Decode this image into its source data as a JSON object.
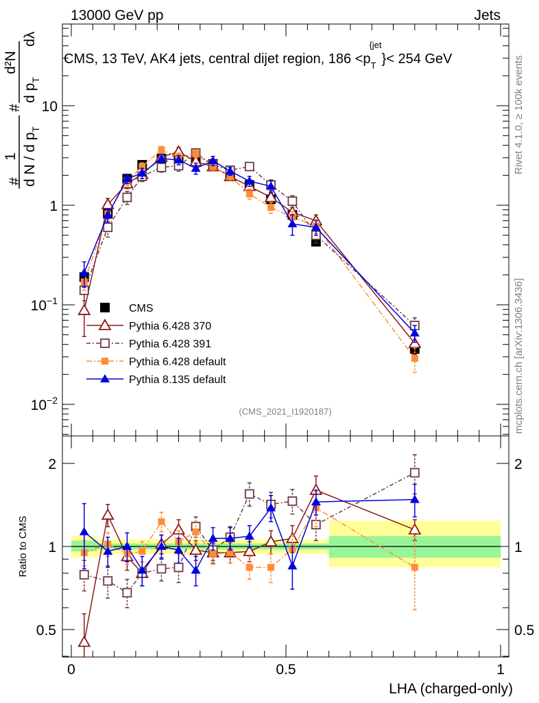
{
  "header": {
    "left": "13000 GeV pp",
    "right": "Jets"
  },
  "side_labels": {
    "rivet": "Rivet 4.1.0, ≥ 100k events",
    "mcplots": "mcplots.cern.ch [arXiv:1306.3436]"
  },
  "analysis_tag": "(CMS_2021_I1920187)",
  "colors": {
    "CMS": "#000000",
    "p370": "#8b1a1a",
    "p391": "#6b3a3f",
    "pdef": "#ff8c38",
    "p8": "#0000e0",
    "band_inner": "#98f598",
    "band_outer": "#ffff99"
  },
  "chart_data": [
    {
      "type": "scatter",
      "title": "CMS, 13 TeV, AK4 jets, central dijet region, 186 <p_T^{jet}< 254 GeV",
      "title_parts": {
        "main": "CMS, 13 TeV, AK4 jets, central dijet region, 186 <p",
        "sub": "T",
        "sup": "{jet",
        "tail": "}< 254 GeV"
      },
      "ylabel_parts": {
        "num": "1",
        "den_main": "d N / d p",
        "den_sub": "T",
        "hash": "#",
        "hash2": "#",
        "expr_num": "d²N",
        "expr_den_main": "d p",
        "expr_den_sub": "T",
        "expr_tail": "dλ"
      },
      "yscale": "log",
      "ylim": [
        0.005,
        60
      ],
      "xlim": [
        -0.02,
        1.0
      ],
      "ytick_labels": [
        {
          "value": 10,
          "label": "10"
        },
        {
          "value": 1,
          "label": "1"
        },
        {
          "value": 0.1,
          "base": "10",
          "exp": "−1"
        },
        {
          "value": 0.01,
          "base": "10",
          "exp": "−2"
        }
      ],
      "legend_position": "lower-left",
      "x": [
        0.03,
        0.085,
        0.13,
        0.165,
        0.21,
        0.25,
        0.29,
        0.33,
        0.37,
        0.415,
        0.465,
        0.515,
        0.57,
        0.8
      ],
      "series": [
        {
          "name": "CMS",
          "color_key": "CMS",
          "marker": "square-filled",
          "dash": "",
          "values": [
            0.19,
            0.82,
            1.85,
            2.55,
            2.95,
            2.95,
            2.85,
            2.6,
            2.05,
            1.6,
            1.15,
            0.8,
            0.43,
            0.036
          ],
          "errors": [
            0.02,
            0.05,
            0.08,
            0.1,
            0.1,
            0.1,
            0.1,
            0.1,
            0.08,
            0.06,
            0.05,
            0.04,
            0.03,
            0.004
          ]
        },
        {
          "name": "Pythia 6.428 370",
          "color_key": "p370",
          "marker": "triangle-open",
          "dash": "",
          "values": [
            0.088,
            1.02,
            1.65,
            2.05,
            3.05,
            3.45,
            2.75,
            2.45,
            1.95,
            1.55,
            1.2,
            0.85,
            0.7,
            0.041
          ],
          "errors": [
            0.04,
            0.15,
            0.18,
            0.2,
            0.3,
            0.35,
            0.3,
            0.25,
            0.2,
            0.15,
            0.12,
            0.1,
            0.1,
            0.008
          ]
        },
        {
          "name": "Pythia 6.428 391",
          "color_key": "p391",
          "marker": "square-open",
          "dash": "6,3,2,3",
          "values": [
            0.14,
            0.6,
            1.2,
            1.95,
            2.4,
            2.5,
            3.35,
            2.55,
            2.25,
            2.45,
            1.6,
            1.1,
            0.5,
            0.062
          ],
          "errors": [
            0.03,
            0.12,
            0.18,
            0.22,
            0.25,
            0.3,
            0.35,
            0.25,
            0.2,
            0.22,
            0.2,
            0.15,
            0.08,
            0.012
          ]
        },
        {
          "name": "Pythia 6.428 default",
          "color_key": "pdef",
          "marker": "square-filled-small",
          "dash": "8,3,2,3",
          "values": [
            0.17,
            0.82,
            1.75,
            2.45,
            3.6,
            3.05,
            3.3,
            2.45,
            1.95,
            1.3,
            0.95,
            0.76,
            0.62,
            0.029
          ],
          "errors": [
            0.03,
            0.1,
            0.18,
            0.22,
            0.3,
            0.3,
            0.3,
            0.25,
            0.2,
            0.15,
            0.12,
            0.1,
            0.1,
            0.008
          ]
        },
        {
          "name": "Pythia 8.135 default",
          "color_key": "p8",
          "marker": "triangle-filled",
          "dash": "",
          "values": [
            0.21,
            0.8,
            1.85,
            2.1,
            2.95,
            2.85,
            2.35,
            2.8,
            2.2,
            1.75,
            1.55,
            0.65,
            0.6,
            0.052
          ],
          "errors": [
            0.06,
            0.12,
            0.2,
            0.25,
            0.3,
            0.3,
            0.3,
            0.3,
            0.2,
            0.2,
            0.2,
            0.15,
            0.1,
            0.01
          ]
        }
      ]
    },
    {
      "type": "scatter",
      "title": "",
      "ylabel": "Ratio to CMS",
      "xlabel": "LHA (charged-only)",
      "yscale": "log",
      "ylim": [
        0.4,
        2.4
      ],
      "xlim": [
        -0.02,
        1.0
      ],
      "yticks": [
        0.5,
        1,
        2
      ],
      "ytick_labels": [
        "0.5",
        "1",
        "2"
      ],
      "xticks": [
        0,
        0.5,
        1
      ],
      "xtick_labels": [
        "0",
        "0.5",
        "1"
      ],
      "bands": [
        {
          "x0": 0.0,
          "x1": 0.06,
          "inner": [
            0.96,
            1.05
          ],
          "outer": [
            0.91,
            1.09
          ]
        },
        {
          "x0": 0.06,
          "x1": 0.6,
          "inner": [
            0.975,
            1.025
          ],
          "outer": [
            0.94,
            1.06
          ]
        },
        {
          "x0": 0.6,
          "x1": 1.0,
          "inner": [
            0.91,
            1.09
          ],
          "outer": [
            0.84,
            1.24
          ]
        }
      ],
      "x": [
        0.03,
        0.085,
        0.13,
        0.165,
        0.21,
        0.25,
        0.29,
        0.33,
        0.37,
        0.415,
        0.465,
        0.515,
        0.57,
        0.8
      ],
      "series": [
        {
          "name": "Pythia 6.428 370",
          "color_key": "p370",
          "marker": "triangle-open",
          "dash": "",
          "values": [
            0.45,
            1.3,
            0.92,
            0.8,
            1.02,
            1.15,
            0.97,
            0.95,
            0.95,
            0.96,
            1.04,
            1.07,
            1.6,
            1.15
          ],
          "errors": [
            0.12,
            0.12,
            0.1,
            0.08,
            0.08,
            0.1,
            0.08,
            0.08,
            0.08,
            0.08,
            0.1,
            0.12,
            0.2,
            0.1
          ]
        },
        {
          "name": "Pythia 6.428 391",
          "color_key": "p391",
          "marker": "square-open",
          "dash": "6,3,2,3",
          "values": [
            0.79,
            0.75,
            0.68,
            0.8,
            0.83,
            0.84,
            1.18,
            0.97,
            1.08,
            1.55,
            1.42,
            1.46,
            1.2,
            1.85
          ],
          "errors": [
            0.1,
            0.1,
            0.08,
            0.08,
            0.08,
            0.1,
            0.1,
            0.08,
            0.1,
            0.15,
            0.15,
            0.15,
            0.15,
            0.3
          ]
        },
        {
          "name": "Pythia 6.428 default",
          "color_key": "pdef",
          "marker": "square-filled-small",
          "dash": "8,3,2,3",
          "values": [
            0.95,
            1.02,
            0.94,
            0.96,
            1.23,
            1.04,
            1.13,
            0.94,
            0.95,
            0.84,
            0.84,
            0.98,
            1.38,
            0.84
          ],
          "errors": [
            0.1,
            0.1,
            0.08,
            0.08,
            0.1,
            0.1,
            0.1,
            0.08,
            0.08,
            0.08,
            0.1,
            0.12,
            0.2,
            0.25
          ]
        },
        {
          "name": "Pythia 8.135 default",
          "color_key": "p8",
          "marker": "triangle-filled",
          "dash": "",
          "values": [
            1.13,
            0.96,
            1.0,
            0.82,
            1.0,
            0.97,
            0.82,
            1.07,
            1.07,
            1.09,
            1.38,
            0.85,
            1.45,
            1.48
          ],
          "errors": [
            0.3,
            0.12,
            0.12,
            0.1,
            0.1,
            0.1,
            0.1,
            0.1,
            0.1,
            0.1,
            0.15,
            0.15,
            0.15,
            0.2
          ]
        }
      ]
    }
  ]
}
